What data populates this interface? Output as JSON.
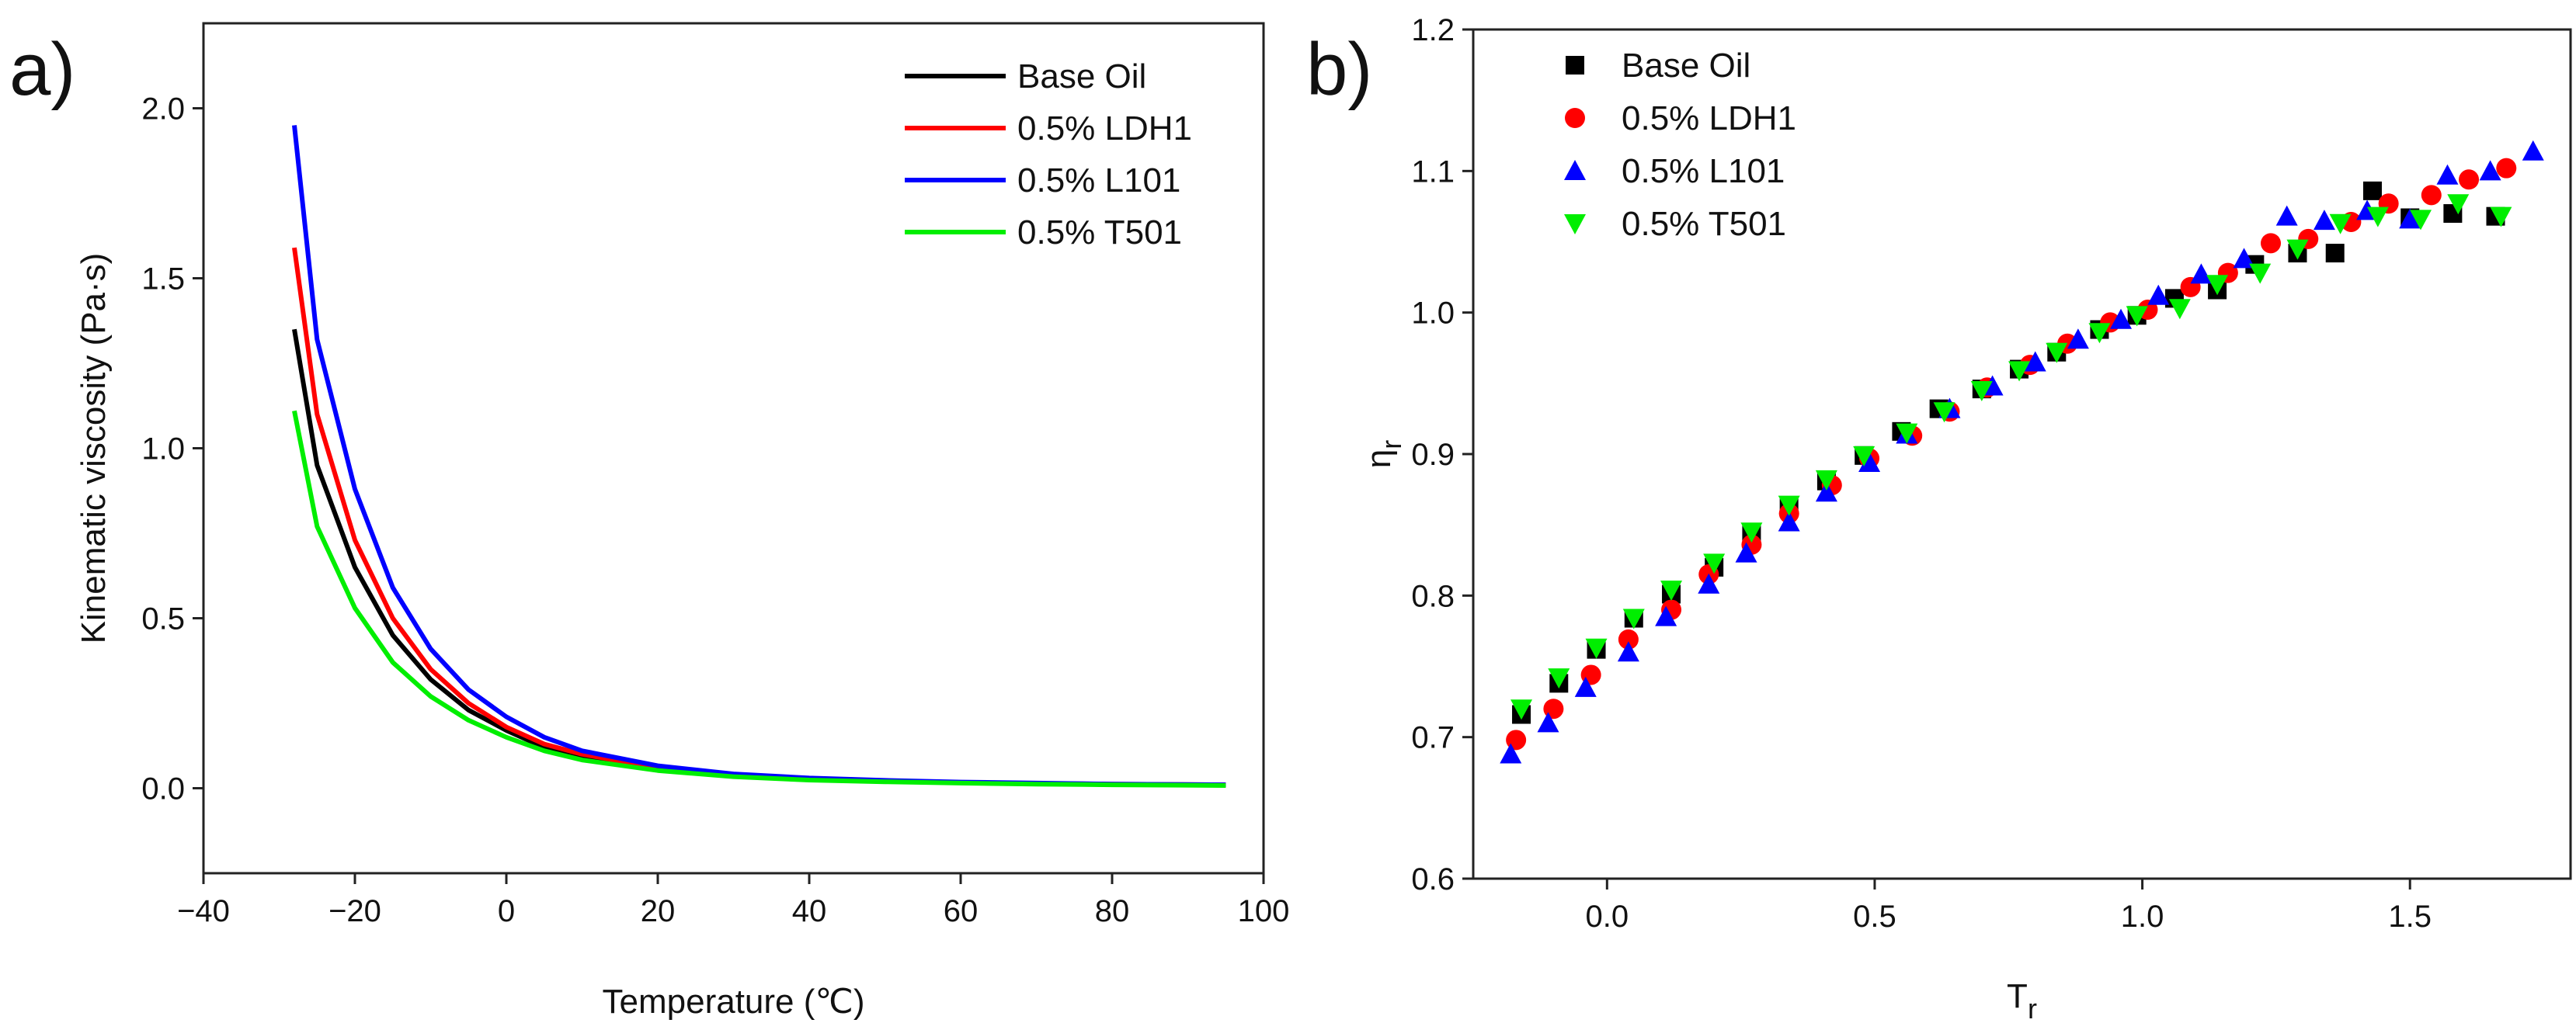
{
  "chart_data": [
    {
      "type": "line",
      "panel_label": "a)",
      "title": "",
      "xlabel": "Temperature (℃)",
      "ylabel": "Kinematic viscosity (Pa·s)",
      "xlim": [
        -40,
        100
      ],
      "ylim": [
        -0.25,
        2.25
      ],
      "xticks": [
        -40,
        -20,
        0,
        20,
        40,
        60,
        80,
        100
      ],
      "xtick_labels": [
        "−40",
        "−20",
        "0",
        "20",
        "40",
        "60",
        "80",
        "100"
      ],
      "yticks": [
        0.0,
        0.5,
        1.0,
        1.5,
        2.0
      ],
      "ytick_labels": [
        "0.0",
        "0.5",
        "1.0",
        "1.5",
        "2.0"
      ],
      "legend_position": "top-right",
      "x": [
        -28,
        -25,
        -20,
        -15,
        -10,
        -5,
        0,
        5,
        10,
        20,
        30,
        40,
        50,
        60,
        70,
        80,
        95
      ],
      "series": [
        {
          "name": "Base Oil",
          "color": "#000000",
          "values": [
            1.35,
            0.95,
            0.65,
            0.45,
            0.32,
            0.23,
            0.17,
            0.12,
            0.09,
            0.055,
            0.035,
            0.025,
            0.02,
            0.016,
            0.013,
            0.011,
            0.009
          ]
        },
        {
          "name": "0.5% LDH1",
          "color": "#ff0000",
          "values": [
            1.59,
            1.1,
            0.73,
            0.5,
            0.35,
            0.25,
            0.18,
            0.13,
            0.1,
            0.06,
            0.038,
            0.027,
            0.021,
            0.017,
            0.014,
            0.012,
            0.01
          ]
        },
        {
          "name": "0.5% L101",
          "color": "#0000ff",
          "values": [
            1.95,
            1.32,
            0.88,
            0.59,
            0.41,
            0.29,
            0.21,
            0.15,
            0.11,
            0.066,
            0.042,
            0.03,
            0.023,
            0.018,
            0.015,
            0.012,
            0.01
          ]
        },
        {
          "name": "0.5% T501",
          "color": "#00ee00",
          "values": [
            1.11,
            0.77,
            0.53,
            0.37,
            0.27,
            0.2,
            0.15,
            0.11,
            0.083,
            0.052,
            0.034,
            0.024,
            0.019,
            0.015,
            0.012,
            0.01,
            0.008
          ]
        }
      ]
    },
    {
      "type": "scatter",
      "panel_label": "b)",
      "title": "",
      "xlabel": "T",
      "xlabel_sub": "r",
      "ylabel": "η",
      "ylabel_sub": "r",
      "xlim": [
        -0.25,
        1.8
      ],
      "ylim": [
        0.6,
        1.2
      ],
      "xticks": [
        0.0,
        0.5,
        1.0,
        1.5
      ],
      "xtick_labels": [
        "0.0",
        "0.5",
        "1.0",
        "1.5"
      ],
      "yticks": [
        0.6,
        0.7,
        0.8,
        0.9,
        1.0,
        1.1,
        1.2
      ],
      "ytick_labels": [
        "0.6",
        "0.7",
        "0.8",
        "0.9",
        "1.0",
        "1.1",
        "1.2"
      ],
      "legend_position": "top-left",
      "series": [
        {
          "name": "Base Oil",
          "color": "#000000",
          "marker": "square",
          "x": [
            -0.16,
            -0.09,
            -0.02,
            0.05,
            0.12,
            0.2,
            0.27,
            0.34,
            0.41,
            0.48,
            0.55,
            0.62,
            0.7,
            0.77,
            0.84,
            0.92,
            0.99,
            1.06,
            1.14,
            1.21,
            1.29,
            1.36,
            1.43,
            1.5,
            1.58,
            1.66
          ],
          "y": [
            0.716,
            0.738,
            0.762,
            0.784,
            0.801,
            0.82,
            0.844,
            0.862,
            0.881,
            0.899,
            0.916,
            0.932,
            0.946,
            0.96,
            0.972,
            0.988,
            0.998,
            1.01,
            1.016,
            1.034,
            1.042,
            1.042,
            1.086,
            1.067,
            1.07,
            1.068
          ]
        },
        {
          "name": "0.5% LDH1",
          "color": "#ff0000",
          "marker": "circle",
          "x": [
            -0.17,
            -0.1,
            -0.03,
            0.04,
            0.12,
            0.19,
            0.27,
            0.34,
            0.42,
            0.49,
            0.57,
            0.64,
            0.71,
            0.79,
            0.86,
            0.94,
            1.01,
            1.09,
            1.16,
            1.24,
            1.31,
            1.39,
            1.46,
            1.54,
            1.61,
            1.68
          ],
          "y": [
            0.698,
            0.72,
            0.744,
            0.769,
            0.79,
            0.815,
            0.836,
            0.858,
            0.878,
            0.897,
            0.913,
            0.93,
            0.947,
            0.963,
            0.978,
            0.993,
            1.002,
            1.018,
            1.028,
            1.049,
            1.052,
            1.064,
            1.077,
            1.083,
            1.094,
            1.102
          ]
        },
        {
          "name": "0.5% L101",
          "color": "#0000ff",
          "marker": "triangle-up",
          "x": [
            -0.18,
            -0.11,
            -0.04,
            0.04,
            0.11,
            0.19,
            0.26,
            0.34,
            0.41,
            0.49,
            0.56,
            0.64,
            0.72,
            0.8,
            0.88,
            0.96,
            1.03,
            1.11,
            1.19,
            1.27,
            1.34,
            1.42,
            1.5,
            1.57,
            1.65,
            1.73
          ],
          "y": [
            0.688,
            0.71,
            0.735,
            0.76,
            0.785,
            0.808,
            0.83,
            0.852,
            0.873,
            0.894,
            0.914,
            0.932,
            0.948,
            0.965,
            0.981,
            0.995,
            1.012,
            1.027,
            1.038,
            1.068,
            1.065,
            1.072,
            1.066,
            1.097,
            1.1,
            1.114
          ]
        },
        {
          "name": "0.5% T501",
          "color": "#00ee00",
          "marker": "triangle-down",
          "x": [
            -0.16,
            -0.09,
            -0.02,
            0.05,
            0.12,
            0.2,
            0.27,
            0.34,
            0.41,
            0.48,
            0.56,
            0.63,
            0.7,
            0.77,
            0.84,
            0.92,
            0.99,
            1.07,
            1.14,
            1.22,
            1.29,
            1.37,
            1.44,
            1.52,
            1.59,
            1.67
          ],
          "y": [
            0.72,
            0.742,
            0.763,
            0.784,
            0.804,
            0.823,
            0.845,
            0.864,
            0.882,
            0.899,
            0.915,
            0.93,
            0.945,
            0.959,
            0.972,
            0.986,
            0.998,
            1.003,
            1.02,
            1.028,
            1.045,
            1.063,
            1.068,
            1.066,
            1.077,
            1.068
          ]
        }
      ]
    }
  ]
}
